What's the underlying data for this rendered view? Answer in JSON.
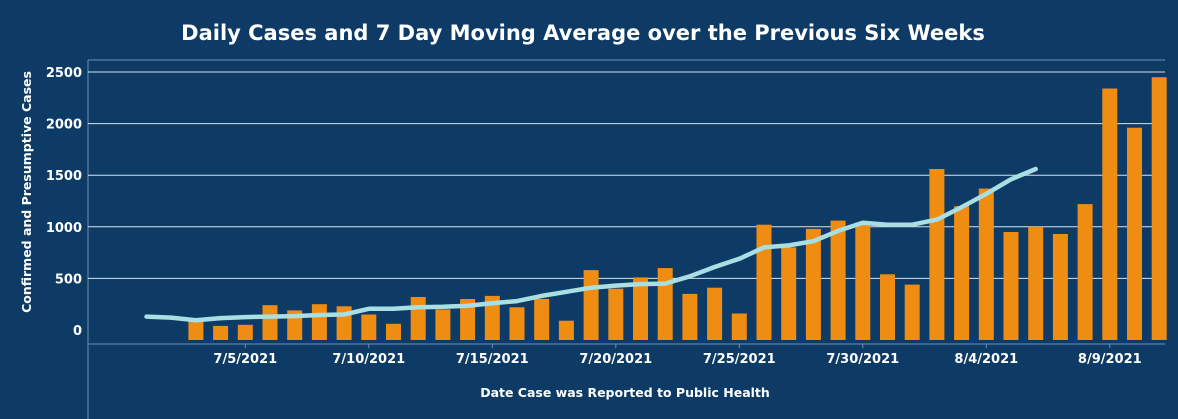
{
  "chart_data": {
    "type": "bar",
    "title": "Daily Cases and 7 Day Moving Average over the Previous Six Weeks",
    "xlabel": "Date Case was Reported to Public Health",
    "ylabel": "Confirmed and Presumptive Cases",
    "ylim": [
      0,
      2600
    ],
    "y_ticks": [
      0,
      500,
      1000,
      1500,
      2000,
      2500
    ],
    "grid": true,
    "x_tick_labels": [
      {
        "label": "7/5/2021",
        "day": 5
      },
      {
        "label": "7/10/2021",
        "day": 10
      },
      {
        "label": "7/15/2021",
        "day": 15
      },
      {
        "label": "7/20/2021",
        "day": 20
      },
      {
        "label": "7/25/2021",
        "day": 25
      },
      {
        "label": "7/30/2021",
        "day": 30
      },
      {
        "label": "8/4/2021",
        "day": 35
      },
      {
        "label": "8/9/2021",
        "day": 40
      }
    ],
    "days": [
      1,
      2,
      3,
      4,
      5,
      6,
      7,
      8,
      9,
      10,
      11,
      12,
      13,
      14,
      15,
      16,
      17,
      18,
      19,
      20,
      21,
      22,
      23,
      24,
      25,
      26,
      27,
      28,
      29,
      30,
      31,
      32,
      33,
      34,
      35,
      36,
      37,
      38,
      39,
      40,
      41,
      42
    ],
    "series": [
      {
        "type": "bar",
        "values": [
          90,
          40,
          50,
          240,
          190,
          250,
          230,
          150,
          60,
          320,
          200,
          300,
          330,
          220,
          300,
          90,
          580,
          400,
          510,
          600,
          350,
          410,
          160,
          1020,
          800,
          980,
          1060,
          1040,
          540,
          440,
          1560,
          1200,
          1370,
          950,
          1000,
          930,
          1220,
          2340,
          1960,
          2450
        ],
        "start_day": 3
      },
      {
        "type": "line",
        "values": [
          130,
          120,
          95,
          115,
          125,
          130,
          135,
          145,
          150,
          205,
          205,
          220,
          225,
          235,
          260,
          280,
          330,
          370,
          410,
          430,
          445,
          450,
          520,
          610,
          690,
          800,
          820,
          860,
          960,
          1040,
          1020,
          1020,
          1070,
          1190,
          1320,
          1460,
          1560
        ],
        "start_day": 1
      }
    ],
    "colors": {
      "background": "#0d3b66",
      "bar": "#ef8c12",
      "line": "#a9dee3",
      "grid": "#ffffff",
      "text": "#ffffff"
    }
  }
}
